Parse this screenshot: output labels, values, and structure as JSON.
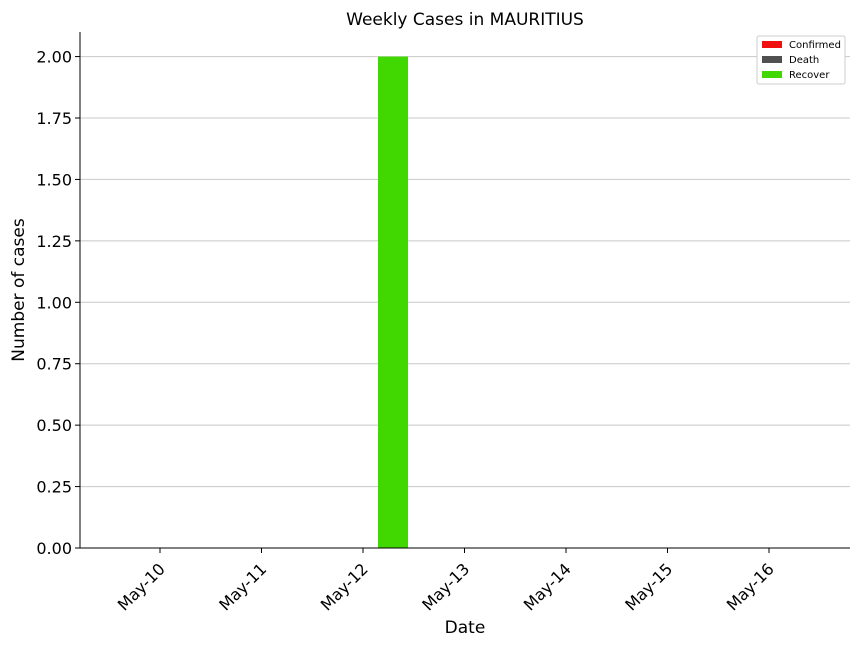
{
  "chart_data": {
    "type": "bar",
    "title": "Weekly Cases in MAURITIUS",
    "xlabel": "Date",
    "ylabel": "Number of cases",
    "categories": [
      "May-10",
      "May-11",
      "May-12",
      "May-13",
      "May-14",
      "May-15",
      "May-16"
    ],
    "series": [
      {
        "name": "Confirmed",
        "color": "#f01010",
        "values": [
          0,
          0,
          0,
          0,
          0,
          0,
          0
        ]
      },
      {
        "name": "Death",
        "color": "#505050",
        "values": [
          0,
          0,
          0,
          0,
          0,
          0,
          0
        ]
      },
      {
        "name": "Recover",
        "color": "#40d800",
        "values": [
          0,
          0,
          2,
          0,
          0,
          0,
          0
        ]
      }
    ],
    "ylim": [
      0,
      2.1
    ],
    "yticks": [
      "0.00",
      "0.25",
      "0.50",
      "0.75",
      "1.00",
      "1.25",
      "1.50",
      "1.75",
      "2.00"
    ],
    "grid": "horizontal",
    "legend_position": "top-right"
  }
}
